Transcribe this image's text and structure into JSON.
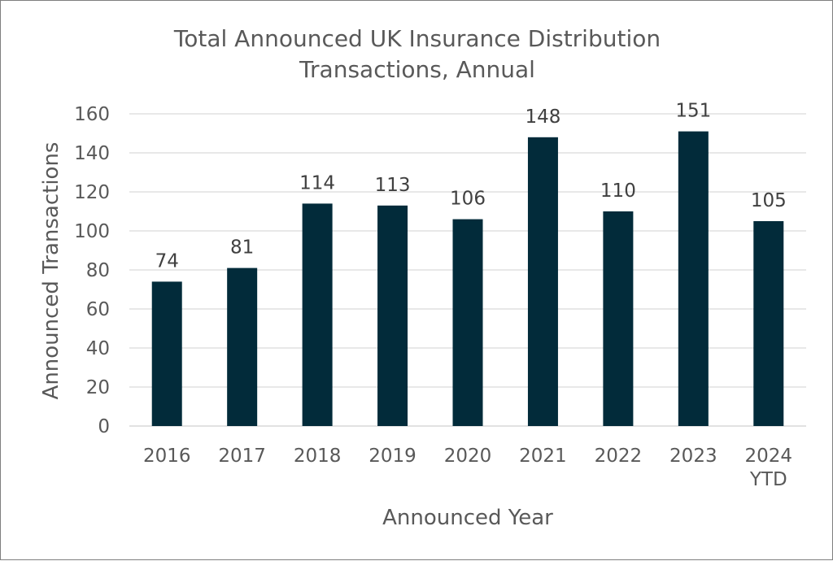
{
  "chart_data": {
    "type": "bar",
    "title": [
      "Total Announced UK Insurance Distribution",
      "Transactions, Annual"
    ],
    "xlabel": "Announced Year",
    "ylabel": "Announced Transactions",
    "categories": [
      "2016",
      "2017",
      "2018",
      "2019",
      "2020",
      "2021",
      "2022",
      "2023",
      "2024 YTD"
    ],
    "values": [
      74,
      81,
      114,
      113,
      106,
      148,
      110,
      151,
      105
    ],
    "ylim": [
      0,
      160
    ],
    "yticks": [
      0,
      20,
      40,
      60,
      80,
      100,
      120,
      140,
      160
    ],
    "grid": true,
    "legend": "none",
    "bar_color": "#022b3a"
  }
}
